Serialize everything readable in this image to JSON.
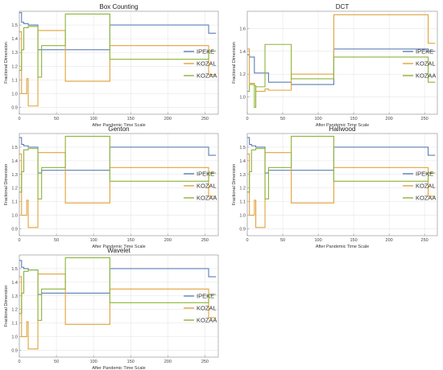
{
  "colors": {
    "IPEKE": "#5b7fb5",
    "KOZAL": "#e0a33a",
    "KOZAA": "#8db437"
  },
  "chart_data": [
    {
      "type": "line",
      "title": "Box Counting",
      "xlabel": "After Pandemic Time Scale",
      "ylabel": "Fractional Dimension",
      "xlim": [
        0,
        268
      ],
      "ylim": [
        0.85,
        1.6
      ],
      "xticks": [
        0,
        50,
        100,
        150,
        200,
        250
      ],
      "yticks": [
        0.9,
        1.0,
        1.1,
        1.2,
        1.3,
        1.4,
        1.5
      ],
      "grid": true,
      "legend_position": "right",
      "series": [
        {
          "name": "IPEKE",
          "x": [
            0,
            3,
            3,
            6,
            6,
            12,
            12,
            25,
            25,
            30,
            30,
            62,
            62,
            122,
            122,
            255,
            255,
            265
          ],
          "y": [
            1.59,
            1.59,
            1.52,
            1.52,
            1.51,
            1.51,
            1.5,
            1.5,
            1.32,
            1.32,
            1.32,
            1.32,
            1.32,
            1.32,
            1.5,
            1.5,
            1.44,
            1.44
          ]
        },
        {
          "name": "KOZAL",
          "x": [
            0,
            3,
            3,
            10,
            10,
            12,
            12,
            25,
            25,
            30,
            30,
            62,
            62,
            122,
            122,
            255,
            255,
            265
          ],
          "y": [
            1.45,
            1.45,
            1.0,
            1.0,
            1.11,
            1.11,
            0.91,
            0.91,
            1.46,
            1.46,
            1.46,
            1.46,
            1.09,
            1.09,
            1.35,
            1.35,
            1.14,
            1.14
          ]
        },
        {
          "name": "KOZAA",
          "x": [
            0,
            3,
            3,
            6,
            6,
            12,
            12,
            25,
            25,
            30,
            30,
            62,
            62,
            122,
            122,
            255,
            255,
            265
          ],
          "y": [
            1.17,
            1.17,
            1.32,
            1.32,
            1.48,
            1.48,
            1.49,
            1.49,
            1.12,
            1.12,
            1.35,
            1.35,
            1.58,
            1.58,
            1.25,
            1.25,
            1.31,
            1.31
          ]
        }
      ]
    },
    {
      "type": "line",
      "title": "DCT",
      "xlabel": "After Pandemic Time Scale",
      "ylabel": "Fractional Dimension",
      "xlim": [
        0,
        268
      ],
      "ylim": [
        0.85,
        1.75
      ],
      "xticks": [
        0,
        50,
        100,
        150,
        200,
        250
      ],
      "yticks": [
        1.0,
        1.2,
        1.4,
        1.6
      ],
      "grid": true,
      "legend_position": "right",
      "series": [
        {
          "name": "IPEKE",
          "x": [
            0,
            3,
            3,
            10,
            10,
            30,
            30,
            62,
            62,
            122,
            122,
            255,
            255,
            265
          ],
          "y": [
            1.37,
            1.37,
            1.35,
            1.35,
            1.21,
            1.21,
            1.13,
            1.13,
            1.11,
            1.11,
            1.42,
            1.42,
            1.4,
            1.4
          ]
        },
        {
          "name": "KOZAL",
          "x": [
            0,
            3,
            3,
            10,
            10,
            12,
            12,
            25,
            25,
            30,
            30,
            62,
            62,
            122,
            122,
            255,
            255,
            265
          ],
          "y": [
            1.42,
            1.42,
            1.12,
            1.12,
            1.1,
            1.1,
            1.05,
            1.05,
            1.07,
            1.07,
            1.06,
            1.06,
            1.2,
            1.2,
            1.72,
            1.72,
            1.47,
            1.47
          ]
        },
        {
          "name": "KOZAA",
          "x": [
            0,
            3,
            3,
            10,
            10,
            12,
            12,
            25,
            25,
            30,
            30,
            62,
            62,
            122,
            122,
            255,
            255,
            265
          ],
          "y": [
            1.05,
            1.05,
            1.11,
            1.11,
            0.91,
            0.91,
            1.09,
            1.09,
            1.46,
            1.46,
            1.46,
            1.46,
            1.16,
            1.16,
            1.35,
            1.35,
            1.13,
            1.13
          ]
        }
      ]
    },
    {
      "type": "line",
      "title": "Genton",
      "xlabel": "After Pandemic Time Scale",
      "ylabel": "Fractional Dimension",
      "xlim": [
        0,
        268
      ],
      "ylim": [
        0.85,
        1.6
      ],
      "xticks": [
        0,
        50,
        100,
        150,
        200,
        250
      ],
      "yticks": [
        0.9,
        1.0,
        1.1,
        1.2,
        1.3,
        1.4,
        1.5
      ],
      "grid": true,
      "legend_position": "right",
      "series": [
        {
          "name": "IPEKE",
          "x": [
            0,
            3,
            3,
            6,
            6,
            12,
            12,
            25,
            25,
            30,
            30,
            62,
            62,
            122,
            122,
            255,
            255,
            265
          ],
          "y": [
            1.57,
            1.57,
            1.52,
            1.52,
            1.51,
            1.51,
            1.5,
            1.5,
            1.31,
            1.31,
            1.33,
            1.33,
            1.33,
            1.33,
            1.5,
            1.5,
            1.44,
            1.44
          ]
        },
        {
          "name": "KOZAL",
          "x": [
            0,
            3,
            3,
            10,
            10,
            12,
            12,
            25,
            25,
            30,
            30,
            62,
            62,
            122,
            122,
            255,
            255,
            265
          ],
          "y": [
            1.45,
            1.45,
            1.0,
            1.0,
            1.11,
            1.11,
            0.91,
            0.91,
            1.46,
            1.46,
            1.46,
            1.46,
            1.09,
            1.09,
            1.35,
            1.35,
            1.14,
            1.14
          ]
        },
        {
          "name": "KOZAA",
          "x": [
            0,
            3,
            3,
            6,
            6,
            12,
            12,
            25,
            25,
            30,
            30,
            62,
            62,
            122,
            122,
            255,
            255,
            265
          ],
          "y": [
            1.17,
            1.17,
            1.32,
            1.32,
            1.48,
            1.48,
            1.49,
            1.49,
            1.12,
            1.12,
            1.35,
            1.35,
            1.58,
            1.58,
            1.25,
            1.25,
            1.31,
            1.31
          ]
        }
      ]
    },
    {
      "type": "line",
      "title": "Hallwood",
      "xlabel": "After Pandemic Time Scale",
      "ylabel": "Fractional Dimension",
      "xlim": [
        0,
        268
      ],
      "ylim": [
        0.85,
        1.6
      ],
      "xticks": [
        0,
        50,
        100,
        150,
        200,
        250
      ],
      "yticks": [
        0.9,
        1.0,
        1.1,
        1.2,
        1.3,
        1.4,
        1.5
      ],
      "grid": true,
      "legend_position": "right",
      "series": [
        {
          "name": "IPEKE",
          "x": [
            0,
            3,
            3,
            6,
            6,
            12,
            12,
            25,
            25,
            30,
            30,
            62,
            62,
            122,
            122,
            255,
            255,
            265
          ],
          "y": [
            1.57,
            1.57,
            1.52,
            1.52,
            1.51,
            1.51,
            1.5,
            1.5,
            1.31,
            1.31,
            1.33,
            1.33,
            1.33,
            1.33,
            1.5,
            1.5,
            1.44,
            1.44
          ]
        },
        {
          "name": "KOZAL",
          "x": [
            0,
            3,
            3,
            10,
            10,
            12,
            12,
            25,
            25,
            30,
            30,
            62,
            62,
            122,
            122,
            255,
            255,
            265
          ],
          "y": [
            1.45,
            1.45,
            1.0,
            1.0,
            1.11,
            1.11,
            0.91,
            0.91,
            1.46,
            1.46,
            1.46,
            1.46,
            1.09,
            1.09,
            1.35,
            1.35,
            1.14,
            1.14
          ]
        },
        {
          "name": "KOZAA",
          "x": [
            0,
            3,
            3,
            6,
            6,
            12,
            12,
            25,
            25,
            30,
            30,
            62,
            62,
            122,
            122,
            255,
            255,
            265
          ],
          "y": [
            1.17,
            1.17,
            1.32,
            1.32,
            1.48,
            1.48,
            1.49,
            1.49,
            1.12,
            1.12,
            1.35,
            1.35,
            1.58,
            1.58,
            1.25,
            1.25,
            1.31,
            1.31
          ]
        }
      ]
    },
    {
      "type": "line",
      "title": "Wavelet",
      "xlabel": "After Pandemic Time Scale",
      "ylabel": "Fractional Dimension",
      "xlim": [
        0,
        268
      ],
      "ylim": [
        0.85,
        1.6
      ],
      "xticks": [
        0,
        50,
        100,
        150,
        200,
        250
      ],
      "yticks": [
        0.9,
        1.0,
        1.1,
        1.2,
        1.3,
        1.4,
        1.5
      ],
      "grid": true,
      "legend_position": "right",
      "series": [
        {
          "name": "IPEKE",
          "x": [
            0,
            3,
            3,
            6,
            6,
            12,
            12,
            25,
            25,
            30,
            30,
            62,
            62,
            122,
            122,
            255,
            255,
            265
          ],
          "y": [
            1.56,
            1.56,
            1.51,
            1.51,
            1.5,
            1.5,
            1.49,
            1.49,
            1.31,
            1.31,
            1.32,
            1.32,
            1.32,
            1.32,
            1.5,
            1.5,
            1.44,
            1.44
          ]
        },
        {
          "name": "KOZAL",
          "x": [
            0,
            3,
            3,
            10,
            10,
            12,
            12,
            25,
            25,
            30,
            30,
            62,
            62,
            122,
            122,
            255,
            255,
            265
          ],
          "y": [
            1.44,
            1.44,
            1.0,
            1.0,
            1.11,
            1.11,
            0.91,
            0.91,
            1.46,
            1.46,
            1.46,
            1.46,
            1.09,
            1.09,
            1.35,
            1.35,
            1.14,
            1.14
          ]
        },
        {
          "name": "KOZAA",
          "x": [
            0,
            3,
            3,
            6,
            6,
            12,
            12,
            25,
            25,
            30,
            30,
            62,
            62,
            122,
            122,
            255,
            255,
            265
          ],
          "y": [
            1.17,
            1.17,
            1.32,
            1.32,
            1.48,
            1.48,
            1.49,
            1.49,
            1.12,
            1.12,
            1.35,
            1.35,
            1.58,
            1.58,
            1.25,
            1.25,
            1.31,
            1.31
          ]
        }
      ]
    }
  ]
}
